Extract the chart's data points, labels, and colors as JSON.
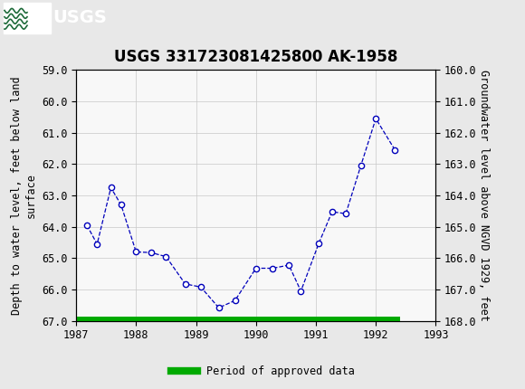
{
  "title": "USGS 331723081425800 AK-1958",
  "ylabel_left": "Depth to water level, feet below land\nsurface",
  "ylabel_right": "Groundwater level above NGVD 1929, feet",
  "ylim_left": [
    59.0,
    67.0
  ],
  "ylim_right": [
    168.0,
    160.0
  ],
  "xlim": [
    1987.0,
    1993.0
  ],
  "yticks_left": [
    59.0,
    60.0,
    61.0,
    62.0,
    63.0,
    64.0,
    65.0,
    66.0,
    67.0
  ],
  "yticks_right": [
    168.0,
    167.0,
    166.0,
    165.0,
    164.0,
    163.0,
    162.0,
    161.0,
    160.0
  ],
  "xticks": [
    1987,
    1988,
    1989,
    1990,
    1991,
    1992,
    1993
  ],
  "data_x": [
    1987.18,
    1987.35,
    1987.58,
    1987.75,
    1988.0,
    1988.25,
    1988.5,
    1988.82,
    1989.08,
    1989.38,
    1989.65,
    1990.0,
    1990.28,
    1990.55,
    1990.75,
    1991.05,
    1991.27,
    1991.5,
    1991.75,
    1992.0,
    1992.32
  ],
  "data_y": [
    63.95,
    64.55,
    62.75,
    63.3,
    64.8,
    64.82,
    64.95,
    65.82,
    65.92,
    66.58,
    66.35,
    65.32,
    65.32,
    65.22,
    66.05,
    64.52,
    63.52,
    63.58,
    62.05,
    60.55,
    61.55
  ],
  "line_color": "#0000bb",
  "marker_facecolor": "#ffffff",
  "marker_edgecolor": "#0000bb",
  "bar_color": "#00aa00",
  "bar_x_start": 1987.0,
  "bar_x_end": 1992.4,
  "bar_y_center": 67.0,
  "bar_height": 0.13,
  "header_bg": "#1e6b3a",
  "fig_bg": "#e8e8e8",
  "plot_bg": "#f8f8f8",
  "grid_color": "#c8c8c8",
  "legend_label": "Period of approved data",
  "title_fontsize": 12,
  "tick_fontsize": 8.5,
  "axis_label_fontsize": 8.5
}
